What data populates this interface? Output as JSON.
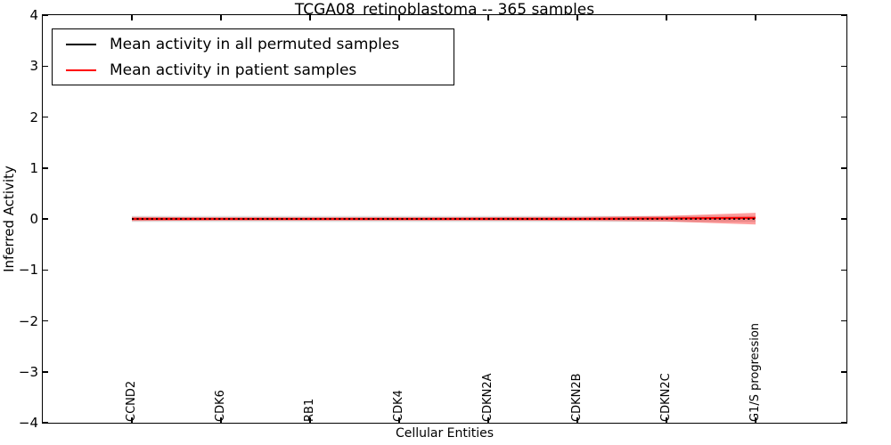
{
  "figure": {
    "background": "#ffffff"
  },
  "chart_data": {
    "type": "line",
    "title": "TCGA08_retinoblastoma -- 365 samples",
    "xlabel": "Cellular Entities",
    "ylabel": "Inferred Activity",
    "ylim": [
      -4,
      4
    ],
    "ytick_values": [
      4,
      3,
      2,
      1,
      0,
      -1,
      -2,
      -3,
      -4
    ],
    "ytick_labels": [
      "4",
      "3",
      "2",
      "1",
      "0",
      "−1",
      "−2",
      "−3",
      "−4"
    ],
    "categories": [
      "CCND2",
      "CDK6",
      "RB1",
      "CDK4",
      "CDKN2A",
      "CDKN2B",
      "CDKN2C",
      "G1/S progression"
    ],
    "grid": false,
    "legend_position": "upper left",
    "series": [
      {
        "name": "Mean activity in all permuted samples",
        "color": "#000000",
        "line_style": "dotted",
        "values": [
          0,
          0,
          0,
          0,
          0,
          0,
          0,
          0
        ]
      },
      {
        "name": "Mean activity in patient samples",
        "color": "#ff0000",
        "line_style": "solid",
        "values": [
          0,
          0,
          0,
          0,
          0,
          0,
          0.01,
          0.02
        ]
      }
    ],
    "bands": [
      {
        "name": "permuted-samples-band",
        "color": "rgba(0,0,0,0.13)",
        "upper": [
          0.06,
          0.06,
          0.06,
          0.06,
          0.06,
          0.06,
          0.06,
          0.06
        ],
        "lower": [
          -0.06,
          -0.06,
          -0.06,
          -0.06,
          -0.06,
          -0.06,
          -0.06,
          -0.06
        ]
      },
      {
        "name": "patient-samples-band",
        "color": "rgba(255,0,0,0.38)",
        "upper": [
          0.04,
          0.03,
          0.03,
          0.03,
          0.035,
          0.04,
          0.06,
          0.12
        ],
        "lower": [
          -0.04,
          -0.03,
          -0.03,
          -0.03,
          -0.03,
          -0.035,
          -0.05,
          -0.11
        ]
      }
    ]
  }
}
